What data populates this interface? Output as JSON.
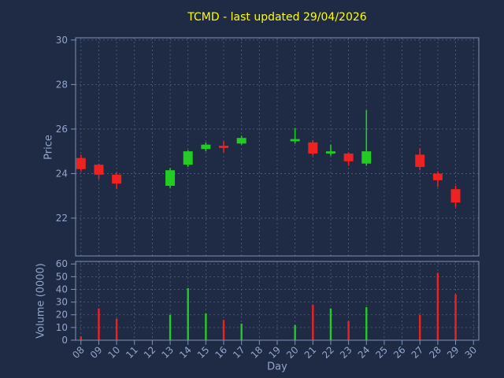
{
  "title": "TCMD - last updated 29/04/2026",
  "colors": {
    "background": "#1f2a44",
    "title": "#ffff00",
    "tick_label": "#93a7cc",
    "axis_label": "#93a7cc",
    "grid": "#55617d",
    "spine": "#7d91b5",
    "up": "#22cc22",
    "down": "#ee2222"
  },
  "chart_data": {
    "type": "candlestick_volume",
    "title": "TCMD - last updated 29/04/2026",
    "xlabel": "Day",
    "ylabel_price": "Price",
    "ylabel_volume": "Volume (0000)",
    "grid": "dashed",
    "x_ticks": [
      "08",
      "09",
      "10",
      "11",
      "12",
      "13",
      "14",
      "15",
      "16",
      "17",
      "18",
      "19",
      "20",
      "21",
      "22",
      "23",
      "24",
      "25",
      "26",
      "27",
      "28",
      "29",
      "30"
    ],
    "price_ticks": [
      22,
      24,
      26,
      28,
      30
    ],
    "volume_ticks": [
      0,
      10,
      20,
      30,
      40,
      50,
      60
    ],
    "xlim": [
      7.7,
      30.3
    ],
    "price_lim": [
      20.3,
      30.1
    ],
    "volume_lim": [
      0,
      62
    ],
    "series": [
      {
        "day": 8,
        "open": 24.7,
        "high": 24.85,
        "low": 24.1,
        "close": 24.2,
        "volume": 3
      },
      {
        "day": 9,
        "open": 24.4,
        "high": 24.45,
        "low": 23.75,
        "close": 23.95,
        "volume": 25
      },
      {
        "day": 10,
        "open": 23.95,
        "high": 24.05,
        "low": 23.3,
        "close": 23.55,
        "volume": 17
      },
      {
        "day": 13,
        "open": 23.45,
        "high": 24.25,
        "low": 23.35,
        "close": 24.15,
        "volume": 20
      },
      {
        "day": 14,
        "open": 24.4,
        "high": 25.05,
        "low": 24.3,
        "close": 25.0,
        "volume": 41
      },
      {
        "day": 15,
        "open": 25.1,
        "high": 25.4,
        "low": 25.0,
        "close": 25.3,
        "volume": 21
      },
      {
        "day": 16,
        "open": 25.25,
        "high": 25.45,
        "low": 24.95,
        "close": 25.15,
        "volume": 16
      },
      {
        "day": 17,
        "open": 25.35,
        "high": 25.7,
        "low": 25.3,
        "close": 25.6,
        "volume": 13
      },
      {
        "day": 20,
        "open": 25.45,
        "high": 26.05,
        "low": 25.35,
        "close": 25.55,
        "volume": 12
      },
      {
        "day": 21,
        "open": 25.4,
        "high": 25.5,
        "low": 24.8,
        "close": 24.9,
        "volume": 28
      },
      {
        "day": 22,
        "open": 24.9,
        "high": 25.3,
        "low": 24.8,
        "close": 25.0,
        "volume": 25
      },
      {
        "day": 23,
        "open": 24.9,
        "high": 24.95,
        "low": 24.35,
        "close": 24.55,
        "volume": 15
      },
      {
        "day": 24,
        "open": 24.45,
        "high": 26.85,
        "low": 24.35,
        "close": 25.0,
        "volume": 26
      },
      {
        "day": 27,
        "open": 24.85,
        "high": 25.15,
        "low": 24.15,
        "close": 24.3,
        "volume": 20
      },
      {
        "day": 28,
        "open": 24.0,
        "high": 24.1,
        "low": 23.4,
        "close": 23.7,
        "volume": 53
      },
      {
        "day": 29,
        "open": 23.3,
        "high": 23.45,
        "low": 22.5,
        "close": 22.7,
        "volume": 36
      }
    ]
  }
}
